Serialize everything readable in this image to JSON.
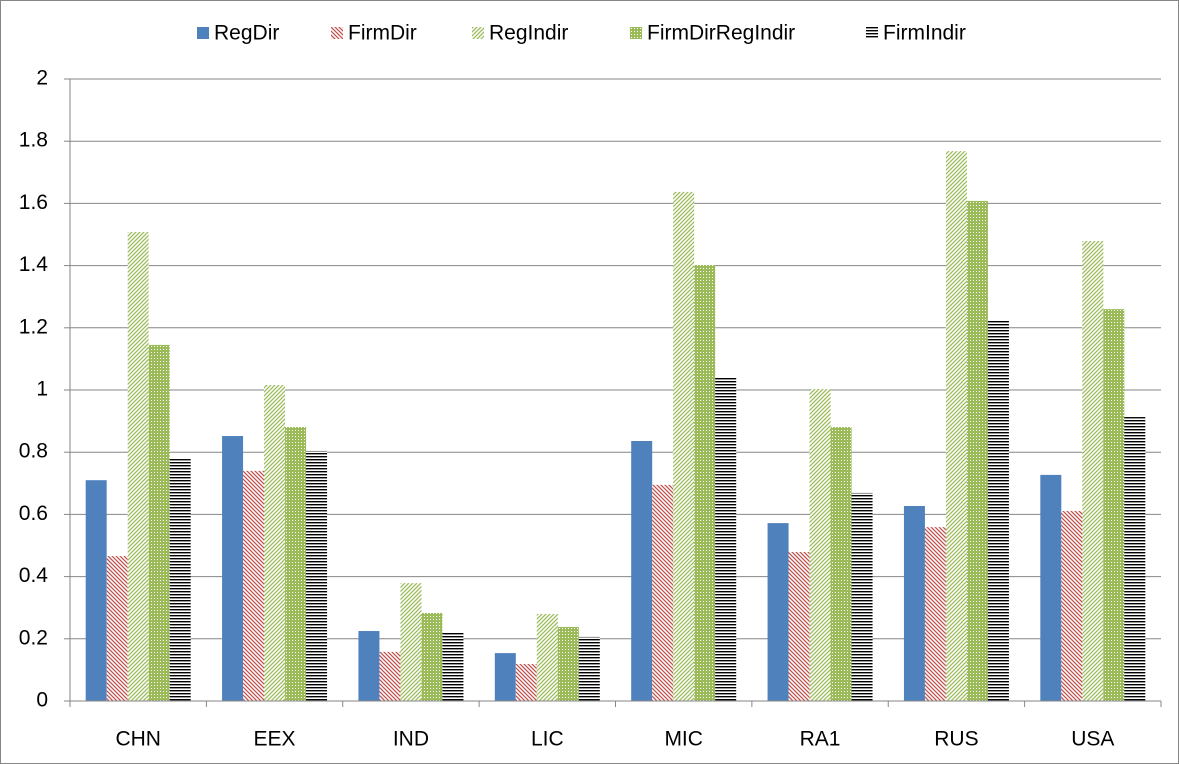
{
  "chart_data": {
    "type": "bar",
    "categories": [
      "CHN",
      "EEX",
      "IND",
      "LIC",
      "MIC",
      "RA1",
      "RUS",
      "USA"
    ],
    "series": [
      {
        "name": "RegDir",
        "color": "#4f81bd",
        "pattern": "solid",
        "values": [
          0.71,
          0.852,
          0.225,
          0.154,
          0.836,
          0.572,
          0.627,
          0.727
        ]
      },
      {
        "name": "FirmDir",
        "color": "#c0504d",
        "pattern": "downward-diagonal",
        "values": [
          0.466,
          0.74,
          0.158,
          0.119,
          0.695,
          0.479,
          0.559,
          0.611
        ]
      },
      {
        "name": "RegIndir",
        "color": "#9bbb59",
        "pattern": "upward-diagonal",
        "values": [
          1.508,
          1.016,
          0.379,
          0.28,
          1.637,
          1.003,
          1.768,
          1.479
        ]
      },
      {
        "name": "FirmDirRegIndir",
        "color": "#9bbb59",
        "pattern": "dotted-grid",
        "values": [
          1.145,
          0.881,
          0.283,
          0.238,
          1.402,
          0.881,
          1.608,
          1.26
        ]
      },
      {
        "name": "FirmIndir",
        "color": "#000000",
        "pattern": "horizontal",
        "values": [
          0.778,
          0.804,
          0.219,
          0.206,
          1.039,
          0.669,
          1.225,
          0.913
        ]
      }
    ],
    "ylim": [
      0,
      2
    ],
    "yticks": [
      0,
      0.2,
      0.4,
      0.6,
      0.8,
      1,
      1.2,
      1.4,
      1.6,
      1.8,
      2
    ],
    "grid": true,
    "legend": "top"
  }
}
